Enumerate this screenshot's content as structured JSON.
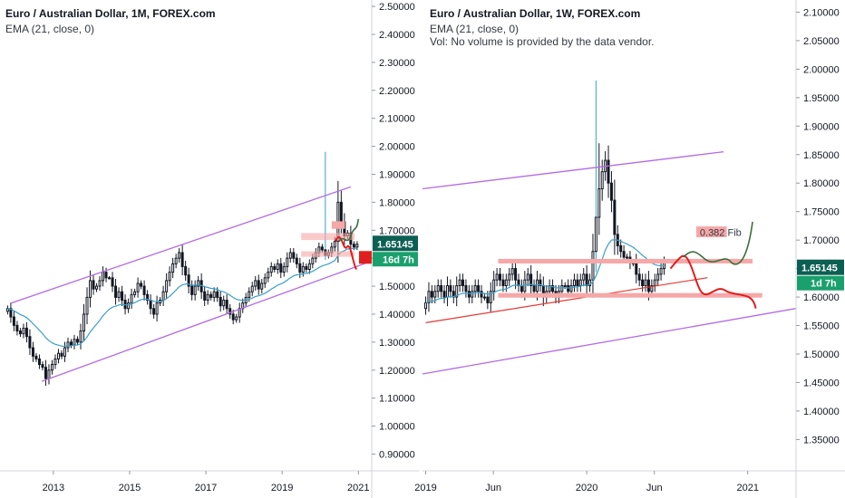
{
  "colors": {
    "up": "#ffffff",
    "down": "#131722",
    "wick": "#131722",
    "ema": "#3aa0c8",
    "channel": "#b36ae6",
    "support": "#e53935",
    "projection_down": "#e01e1e",
    "projection_up": "#3b6e3b",
    "zone": "#f6a7a7",
    "price_badge": "#0c5f53",
    "timer_badge": "#1aa06c",
    "grid": "#e8e8e8",
    "axis_line": "#787b86",
    "text": "#131722"
  },
  "chart_data": [
    {
      "id": "monthly",
      "type": "candlestick",
      "title": "Euro / Australian Dollar, 1M, FOREX.com",
      "indicator": "EMA (21, close, 0)",
      "volume_note": "",
      "price": "1.65145",
      "timer": "16d 7h",
      "x_labels": [
        {
          "t": 2013,
          "label": "2013"
        },
        {
          "t": 2015,
          "label": "2015"
        },
        {
          "t": 2017,
          "label": "2017"
        },
        {
          "t": 2019,
          "label": "2019"
        },
        {
          "t": 2021,
          "label": "2021"
        }
      ],
      "xlim": [
        2011.6,
        2021.35
      ],
      "ylim": [
        0.84,
        2.51
      ],
      "y_ticks": [
        "2.50000",
        "2.40000",
        "2.30000",
        "2.20000",
        "2.10000",
        "2.00000",
        "1.90000",
        "1.80000",
        "1.70000",
        "1.60000",
        "1.50000",
        "1.40000",
        "1.30000",
        "1.20000",
        "1.10000",
        "1.00000",
        "0.90000"
      ],
      "start": 2011.8,
      "step": 0.0833333,
      "closes": [
        1.42,
        1.39,
        1.36,
        1.34,
        1.33,
        1.35,
        1.32,
        1.28,
        1.25,
        1.24,
        1.22,
        1.21,
        1.17,
        1.2,
        1.22,
        1.24,
        1.26,
        1.25,
        1.28,
        1.3,
        1.29,
        1.31,
        1.3,
        1.34,
        1.4,
        1.46,
        1.52,
        1.49,
        1.5,
        1.52,
        1.55,
        1.53,
        1.53,
        1.5,
        1.46,
        1.48,
        1.45,
        1.42,
        1.44,
        1.47,
        1.48,
        1.51,
        1.5,
        1.47,
        1.45,
        1.42,
        1.4,
        1.44,
        1.45,
        1.48,
        1.52,
        1.55,
        1.58,
        1.6,
        1.62,
        1.57,
        1.54,
        1.5,
        1.47,
        1.5,
        1.52,
        1.48,
        1.45,
        1.47,
        1.46,
        1.48,
        1.46,
        1.43,
        1.45,
        1.42,
        1.4,
        1.38,
        1.39,
        1.42,
        1.44,
        1.46,
        1.48,
        1.5,
        1.52,
        1.49,
        1.51,
        1.53,
        1.55,
        1.57,
        1.56,
        1.58,
        1.55,
        1.57,
        1.6,
        1.62,
        1.6,
        1.58,
        1.55,
        1.57,
        1.56,
        1.58,
        1.6,
        1.62,
        1.64,
        1.63,
        1.61,
        1.62,
        1.64,
        1.66,
        1.8,
        1.73,
        1.68,
        1.69,
        1.65,
        1.64,
        1.65
      ]
    },
    {
      "id": "weekly",
      "type": "candlestick",
      "title": "Euro / Australian Dollar, 1W, FOREX.com",
      "indicator": "EMA (21, close, 0)",
      "volume_note": "Vol: No volume is provided by the data vendor.",
      "price": "1.65145",
      "timer": "1d 7h",
      "annotation": "0.382 Fib",
      "x_labels": [
        {
          "t": 2019.0,
          "label": "2019"
        },
        {
          "t": 2019.42,
          "label": "Jun"
        },
        {
          "t": 2020.0,
          "label": "2020"
        },
        {
          "t": 2020.42,
          "label": "Jun"
        },
        {
          "t": 2021.0,
          "label": "2021"
        }
      ],
      "xlim": [
        2018.98,
        2021.3
      ],
      "ylim": [
        1.295,
        2.115
      ],
      "y_ticks": [
        "2.10000",
        "2.05000",
        "2.00000",
        "1.95000",
        "1.90000",
        "1.85000",
        "1.80000",
        "1.75000",
        "1.70000",
        "1.65000",
        "1.60000",
        "1.55000",
        "1.50000",
        "1.45000",
        "1.40000",
        "1.35000"
      ],
      "start": 2019.0,
      "step": 0.01923,
      "closes": [
        1.59,
        1.61,
        1.6,
        1.61,
        1.62,
        1.61,
        1.6,
        1.62,
        1.61,
        1.6,
        1.62,
        1.63,
        1.62,
        1.61,
        1.6,
        1.61,
        1.62,
        1.61,
        1.6,
        1.6,
        1.59,
        1.61,
        1.63,
        1.64,
        1.63,
        1.62,
        1.63,
        1.64,
        1.65,
        1.63,
        1.62,
        1.61,
        1.63,
        1.64,
        1.62,
        1.61,
        1.63,
        1.62,
        1.6,
        1.61,
        1.62,
        1.61,
        1.6,
        1.61,
        1.62,
        1.62,
        1.61,
        1.62,
        1.63,
        1.62,
        1.63,
        1.64,
        1.62,
        1.63,
        1.68,
        1.74,
        1.79,
        1.82,
        1.84,
        1.8,
        1.77,
        1.71,
        1.69,
        1.68,
        1.67,
        1.67,
        1.66,
        1.66,
        1.64,
        1.63,
        1.62,
        1.63,
        1.61,
        1.62,
        1.63,
        1.64,
        1.65,
        1.66
      ]
    }
  ]
}
